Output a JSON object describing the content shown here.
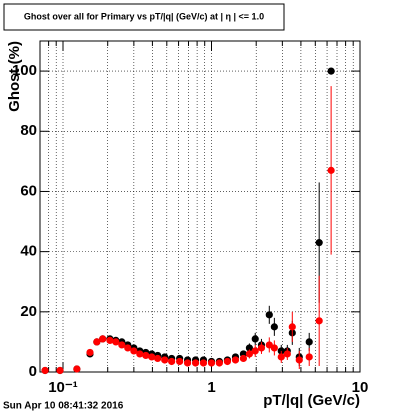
{
  "chart_data": {
    "type": "errorbar_scatter",
    "title": "Ghost over all for Primary vs pT/|q| (GeV/c) at | η | <= 1.0",
    "x_label": "pT/|q| (GeV/c)",
    "y_label": "Ghost (%)",
    "timestamp": "Sun Apr 10 08:41:32 2016",
    "x": [
      0.0757,
      0.0955,
      0.124,
      0.152,
      0.169,
      0.185,
      0.207,
      0.227,
      0.249,
      0.273,
      0.3,
      0.329,
      0.361,
      0.396,
      0.434,
      0.484,
      0.539,
      0.61,
      0.69,
      0.781,
      0.883,
      1,
      1.13,
      1.28,
      1.45,
      1.64,
      1.8,
      1.97,
      2.17,
      2.45,
      2.65,
      2.95,
      3.24,
      3.5,
      3.9,
      4.55,
      5.31,
      6.39
    ],
    "series": [
      {
        "name": "black",
        "color": "#000000",
        "values": [
          0.5,
          0.5,
          1,
          6,
          10,
          11,
          11,
          10.5,
          10,
          9,
          8,
          7,
          6.5,
          6,
          5.5,
          5,
          4.5,
          4.5,
          4,
          4,
          4,
          3.5,
          3.5,
          4,
          5,
          6,
          8,
          11,
          9,
          19,
          15,
          7,
          7,
          13,
          5,
          10,
          43,
          100
        ],
        "errors": [
          0.5,
          0.5,
          0.5,
          0.8,
          1,
          1,
          0.8,
          0.7,
          0.6,
          0.6,
          0.5,
          0.5,
          0.5,
          0.5,
          0.5,
          0.5,
          0.5,
          0.5,
          0.5,
          0.5,
          0.5,
          0.5,
          0.5,
          0.6,
          0.8,
          1,
          1.5,
          2,
          2,
          3,
          3,
          2,
          2,
          4,
          3,
          3,
          20,
          1
        ]
      },
      {
        "name": "red",
        "color": "#ff0000",
        "values": [
          0.5,
          0.5,
          1,
          6.5,
          10,
          11,
          10.5,
          10,
          9,
          8,
          7,
          6,
          5.5,
          5,
          4.5,
          4,
          3.5,
          3.5,
          3,
          3,
          3,
          3,
          3,
          3.5,
          4,
          4.5,
          6,
          7,
          8,
          9,
          8,
          5,
          6,
          15,
          4,
          5,
          17,
          67
        ],
        "errors": [
          0.5,
          0.5,
          0.5,
          0.8,
          1,
          1,
          0.8,
          0.7,
          0.6,
          0.6,
          0.5,
          0.5,
          0.5,
          0.5,
          0.5,
          0.5,
          0.5,
          0.5,
          0.5,
          0.5,
          0.5,
          0.5,
          0.5,
          0.6,
          0.8,
          1,
          1.5,
          2,
          2,
          2.5,
          2.5,
          2,
          2,
          5,
          3,
          3,
          15,
          28
        ]
      }
    ],
    "xscale": "log",
    "xlim": [
      0.07,
      10
    ],
    "ylim": [
      0,
      110
    ],
    "xticks": [
      {
        "value": 0.1,
        "label": "10⁻¹"
      },
      1,
      10
    ],
    "xminorticks": [
      0.08,
      0.09,
      0.2,
      0.3,
      0.4,
      0.5,
      0.6,
      0.7,
      0.8,
      0.9,
      2,
      3,
      4,
      5,
      6,
      7,
      8,
      9
    ],
    "yticks": [
      0,
      20,
      40,
      60,
      80,
      100
    ],
    "grid": true
  }
}
